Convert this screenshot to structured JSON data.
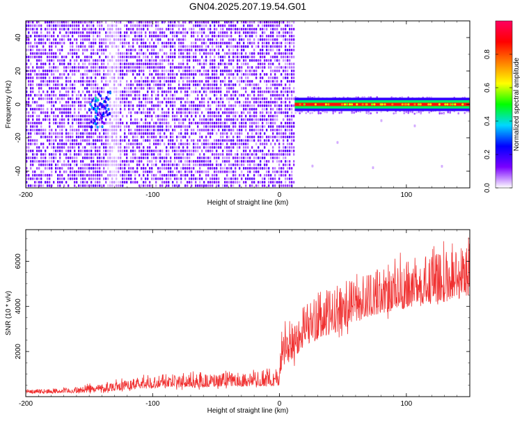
{
  "title": "GN04.2025.207.19.54.G01",
  "chart_data": [
    {
      "type": "heatmap",
      "xlabel": "Height of straight line (km)",
      "ylabel": "Frequency (Hz)",
      "xlim": [
        -200,
        150
      ],
      "ylim": [
        -50,
        50
      ],
      "xticks": [
        -200,
        -100,
        0,
        100
      ],
      "yticks": [
        -40,
        -20,
        0,
        20,
        40
      ],
      "xtick_labels": [
        "-200",
        "-100",
        "0",
        "100"
      ],
      "ytick_labels": [
        "-40",
        "-20",
        "0",
        "20",
        "40"
      ],
      "colorbar": {
        "label": "Normalized spectral amplitude",
        "range": [
          0,
          1
        ],
        "ticks": [
          0,
          0.2,
          0.4,
          0.6,
          0.8
        ],
        "tick_labels": [
          "0.0",
          "0.2",
          "0.4",
          "0.6",
          "0.8"
        ],
        "colors": [
          "#ffffff",
          "#7a00ff",
          "#0000ff",
          "#00d8ff",
          "#00ff00",
          "#ffff00",
          "#ff8000",
          "#ff0000",
          "#ff0060"
        ]
      },
      "regions": [
        {
          "x_range": [
            -200,
            12
          ],
          "y_range": [
            -50,
            50
          ],
          "description_level": 0.15
        },
        {
          "x_range": [
            12,
            150
          ],
          "y_range": [
            -4,
            4
          ],
          "level": 0.2
        },
        {
          "x_range": [
            12,
            150
          ],
          "y_range": [
            -1,
            1
          ],
          "level": 0.85
        }
      ],
      "hotspots": [
        {
          "x": -140,
          "y": 0,
          "level": 0.35
        },
        {
          "x": -145,
          "y": -5,
          "level": 0.3
        }
      ],
      "grid": false
    },
    {
      "type": "line",
      "xlabel": "Height of straight line (km)",
      "ylabel": "SNR (10 * v/v)",
      "xlim": [
        -200,
        150
      ],
      "ylim": [
        0,
        7400
      ],
      "xticks": [
        -200,
        -100,
        0,
        100
      ],
      "yticks": [
        2000,
        4000,
        6000
      ],
      "xtick_labels": [
        "-200",
        "-100",
        "0",
        "100"
      ],
      "ytick_labels": [
        "2000",
        "4000",
        "6000"
      ],
      "series": [
        {
          "color": "#f03030",
          "x": [
            -200,
            -180,
            -160,
            -140,
            -120,
            -100,
            -80,
            -60,
            -40,
            -20,
            0,
            2,
            10,
            20,
            40,
            60,
            80,
            100,
            120,
            140,
            150
          ],
          "y_low": [
            150,
            150,
            160,
            220,
            300,
            380,
            400,
            420,
            440,
            460,
            470,
            1300,
            1600,
            2300,
            2700,
            3300,
            3700,
            3900,
            4100,
            4300,
            4500
          ],
          "y_high": [
            300,
            330,
            420,
            600,
            750,
            900,
            950,
            1000,
            1050,
            1100,
            1150,
            3500,
            3400,
            4200,
            4800,
            5300,
            5700,
            6000,
            6300,
            6700,
            6900
          ]
        }
      ],
      "grid": false
    }
  ]
}
